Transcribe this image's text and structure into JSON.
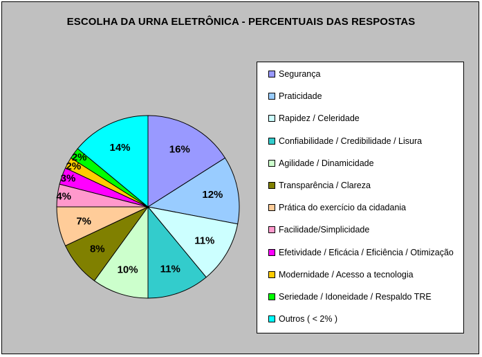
{
  "chart_data": {
    "type": "pie",
    "title": "ESCOLHA DA URNA ELETRÔNICA - PERCENTUAIS DAS RESPOSTAS",
    "categories": [
      "Segurança",
      "Praticidade",
      "Rapidez / Celeridade",
      "Confiabilidade / Credibilidade / Lisura",
      "Agilidade / Dinamicidade",
      "Transparência / Clareza",
      "Prática do exercício da cidadania",
      "Facilidade/Simplicidade",
      "Efetividade / Eficácia / Eficiência / Otimização",
      "Modernidade / Acesso a tecnologia",
      "Seriedade / Idoneidade / Respaldo TRE",
      "Outros ( < 2% )"
    ],
    "values": [
      16,
      12,
      11,
      11,
      10,
      8,
      7,
      4,
      3,
      2,
      2,
      14
    ],
    "data_labels": [
      "16%",
      "12%",
      "11%",
      "11%",
      "10%",
      "8%",
      "7%",
      "4%",
      "3%",
      "2%",
      "2%",
      "14%"
    ],
    "colors": [
      "#9999ff",
      "#99ccff",
      "#ccffff",
      "#33cccc",
      "#ccffcc",
      "#808000",
      "#ffcc99",
      "#ff99cc",
      "#ff00ff",
      "#ffcc00",
      "#00ff00",
      "#00ffff"
    ],
    "legend_position": "right",
    "background_color": "#c0c0c0"
  }
}
